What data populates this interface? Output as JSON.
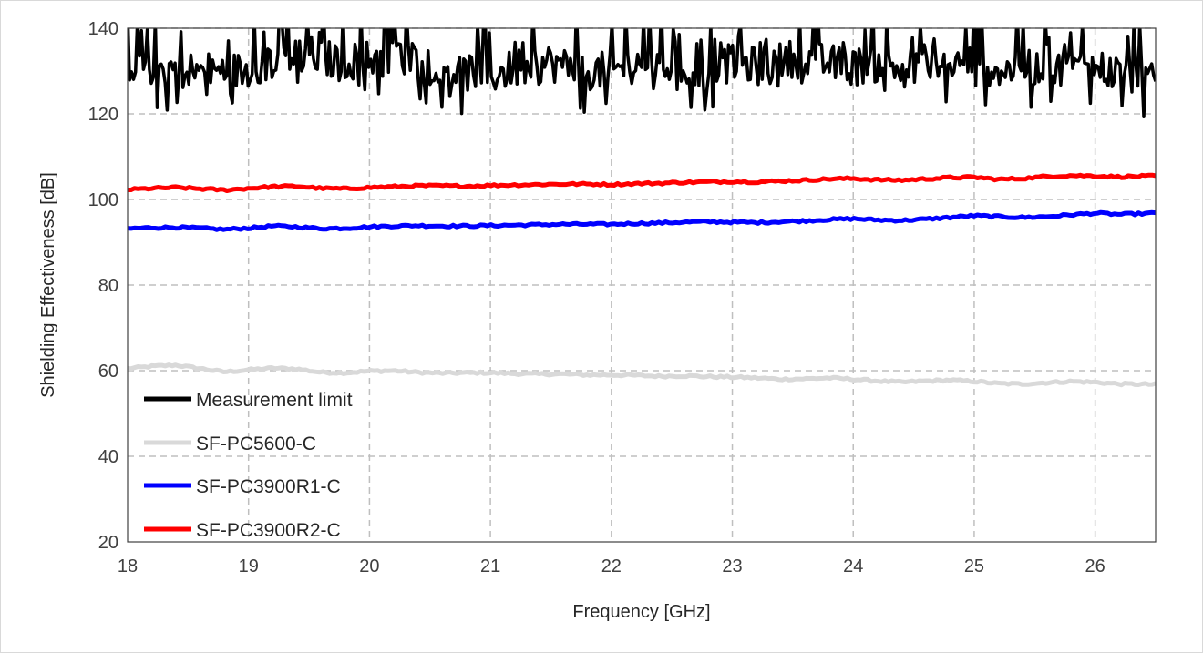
{
  "chart_data": {
    "type": "line",
    "title": "",
    "xlabel": "Frequency [GHz]",
    "ylabel": "Shielding Effectiveness [dB]",
    "xlim": [
      18,
      26.5
    ],
    "ylim": [
      20,
      140
    ],
    "xticks": [
      18,
      19,
      20,
      21,
      22,
      23,
      24,
      25,
      26
    ],
    "yticks": [
      20,
      40,
      60,
      80,
      100,
      120,
      140
    ],
    "grid": true,
    "legend_position": "bottom-left",
    "series": [
      {
        "name": "Measurement limit",
        "color": "#000000",
        "noisy": true,
        "x": [
          18,
          18.25,
          18.5,
          18.75,
          19,
          19.25,
          19.5,
          19.75,
          20,
          20.25,
          20.5,
          20.75,
          21,
          21.25,
          21.5,
          21.75,
          22,
          22.25,
          22.5,
          22.75,
          23,
          23.25,
          23.5,
          23.75,
          24,
          24.25,
          24.5,
          24.75,
          25,
          25.25,
          25.5,
          25.75,
          26,
          26.25,
          26.5
        ],
        "y": [
          132,
          131,
          130,
          130,
          130,
          133,
          134,
          132,
          133,
          134,
          131,
          130,
          129,
          131,
          132,
          130,
          130,
          132,
          131,
          130,
          132,
          131,
          133,
          132,
          131,
          132,
          130,
          131,
          132,
          130,
          131,
          130,
          131,
          129,
          127
        ]
      },
      {
        "name": "SF-PC5600-C",
        "color": "#d9d9d9",
        "noisy": false,
        "x": [
          18,
          18.2,
          18.4,
          18.6,
          18.8,
          19,
          19.2,
          19.4,
          19.6,
          19.8,
          20,
          20.2,
          20.4,
          20.6,
          20.8,
          21,
          21.2,
          21.4,
          21.6,
          21.8,
          22,
          22.2,
          22.4,
          22.6,
          22.8,
          23,
          23.2,
          23.4,
          23.6,
          23.8,
          24,
          24.2,
          24.4,
          24.6,
          24.8,
          25,
          25.2,
          25.4,
          25.6,
          25.8,
          26,
          26.2,
          26.5
        ],
        "y": [
          60.5,
          61,
          61.3,
          60.5,
          59.7,
          60.2,
          60.6,
          60.4,
          59.6,
          59.5,
          59.9,
          60,
          59.6,
          59.4,
          59.5,
          59.5,
          59.3,
          59.2,
          59.2,
          59,
          59,
          58.9,
          58.7,
          58.8,
          58.6,
          58.5,
          58.3,
          58,
          58.1,
          58.3,
          58,
          57.6,
          57.3,
          57.6,
          57.8,
          57.5,
          57,
          56.9,
          57.2,
          57.5,
          57.3,
          56.9,
          56.8
        ]
      },
      {
        "name": "SF-PC3900R1-C",
        "color": "#0000ff",
        "noisy": false,
        "x": [
          18,
          18.2,
          18.4,
          18.6,
          18.8,
          19,
          19.2,
          19.4,
          19.6,
          19.8,
          20,
          20.2,
          20.4,
          20.6,
          20.8,
          21,
          21.2,
          21.4,
          21.6,
          21.8,
          22,
          22.2,
          22.4,
          22.6,
          22.8,
          23,
          23.2,
          23.4,
          23.6,
          23.8,
          24,
          24.2,
          24.4,
          24.6,
          24.8,
          25,
          25.2,
          25.4,
          25.6,
          25.8,
          26,
          26.2,
          26.5
        ],
        "y": [
          93.2,
          93.4,
          93.5,
          93.3,
          93,
          93.3,
          93.8,
          93.6,
          93.2,
          93.3,
          93.6,
          93.8,
          93.9,
          93.8,
          93.8,
          93.9,
          94,
          94.1,
          94.2,
          94.2,
          94.2,
          94.4,
          94.5,
          94.7,
          94.8,
          94.7,
          94.6,
          94.8,
          95,
          95.3,
          95.5,
          95.2,
          95.1,
          95.4,
          95.8,
          96.2,
          96,
          95.8,
          96,
          96.4,
          96.8,
          96.5,
          96.8
        ]
      },
      {
        "name": "SF-PC3900R2-C",
        "color": "#ff0000",
        "noisy": false,
        "x": [
          18,
          18.2,
          18.4,
          18.6,
          18.8,
          19,
          19.2,
          19.4,
          19.6,
          19.8,
          20,
          20.2,
          20.4,
          20.6,
          20.8,
          21,
          21.2,
          21.4,
          21.6,
          21.8,
          22,
          22.2,
          22.4,
          22.6,
          22.8,
          23,
          23.2,
          23.4,
          23.6,
          23.8,
          24,
          24.2,
          24.4,
          24.6,
          24.8,
          25,
          25.2,
          25.4,
          25.6,
          25.8,
          26,
          26.2,
          26.5
        ],
        "y": [
          102.3,
          102.6,
          102.8,
          102.5,
          102.2,
          102.6,
          103,
          103.1,
          102.6,
          102.5,
          102.8,
          103,
          103.2,
          103.2,
          103.1,
          103.3,
          103.4,
          103.5,
          103.6,
          103.6,
          103.5,
          103.7,
          103.8,
          104,
          104.1,
          104.2,
          104.1,
          104.3,
          104.5,
          104.8,
          104.9,
          104.6,
          104.5,
          104.8,
          105.1,
          105.2,
          104.7,
          104.9,
          105.4,
          105.6,
          105.5,
          105.3,
          105.5
        ]
      }
    ]
  }
}
